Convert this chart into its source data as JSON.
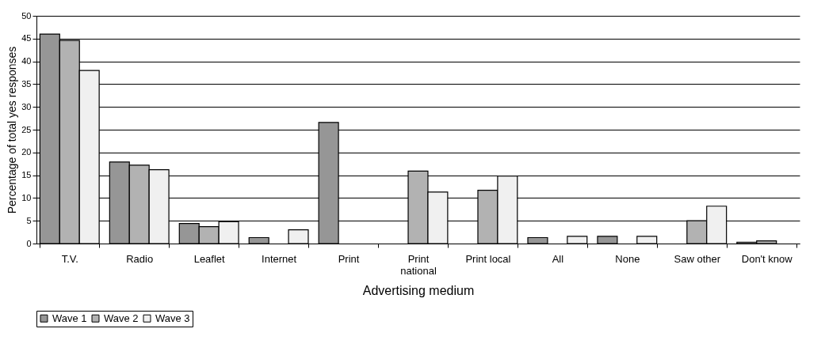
{
  "chart_data": {
    "type": "bar",
    "xlabel": "Advertising medium",
    "ylabel": "Percentage of total yes responses",
    "categories": [
      "T.V.",
      "Radio",
      "Leaflet",
      "Internet",
      "Print",
      "Print national",
      "Print local",
      "All",
      "None",
      "Saw other",
      "Don't know"
    ],
    "series": [
      {
        "name": "Wave 1",
        "color": "#969696",
        "values": [
          46.0,
          17.9,
          4.4,
          1.3,
          26.6,
          null,
          null,
          1.3,
          1.6,
          null,
          0.3
        ]
      },
      {
        "name": "Wave 2",
        "color": "#b2b2b2",
        "values": [
          44.6,
          17.2,
          3.7,
          null,
          null,
          15.9,
          11.7,
          null,
          null,
          5.0,
          0.6
        ]
      },
      {
        "name": "Wave 3",
        "color": "#f0f0f0",
        "values": [
          38.0,
          16.2,
          4.8,
          3.0,
          null,
          11.3,
          14.8,
          1.6,
          1.6,
          8.2,
          null
        ]
      }
    ],
    "ylim": [
      0,
      50
    ],
    "yticks": [
      0,
      5,
      10,
      15,
      20,
      25,
      30,
      35,
      40,
      45,
      50
    ],
    "grid": "y",
    "legend": "bottom"
  }
}
